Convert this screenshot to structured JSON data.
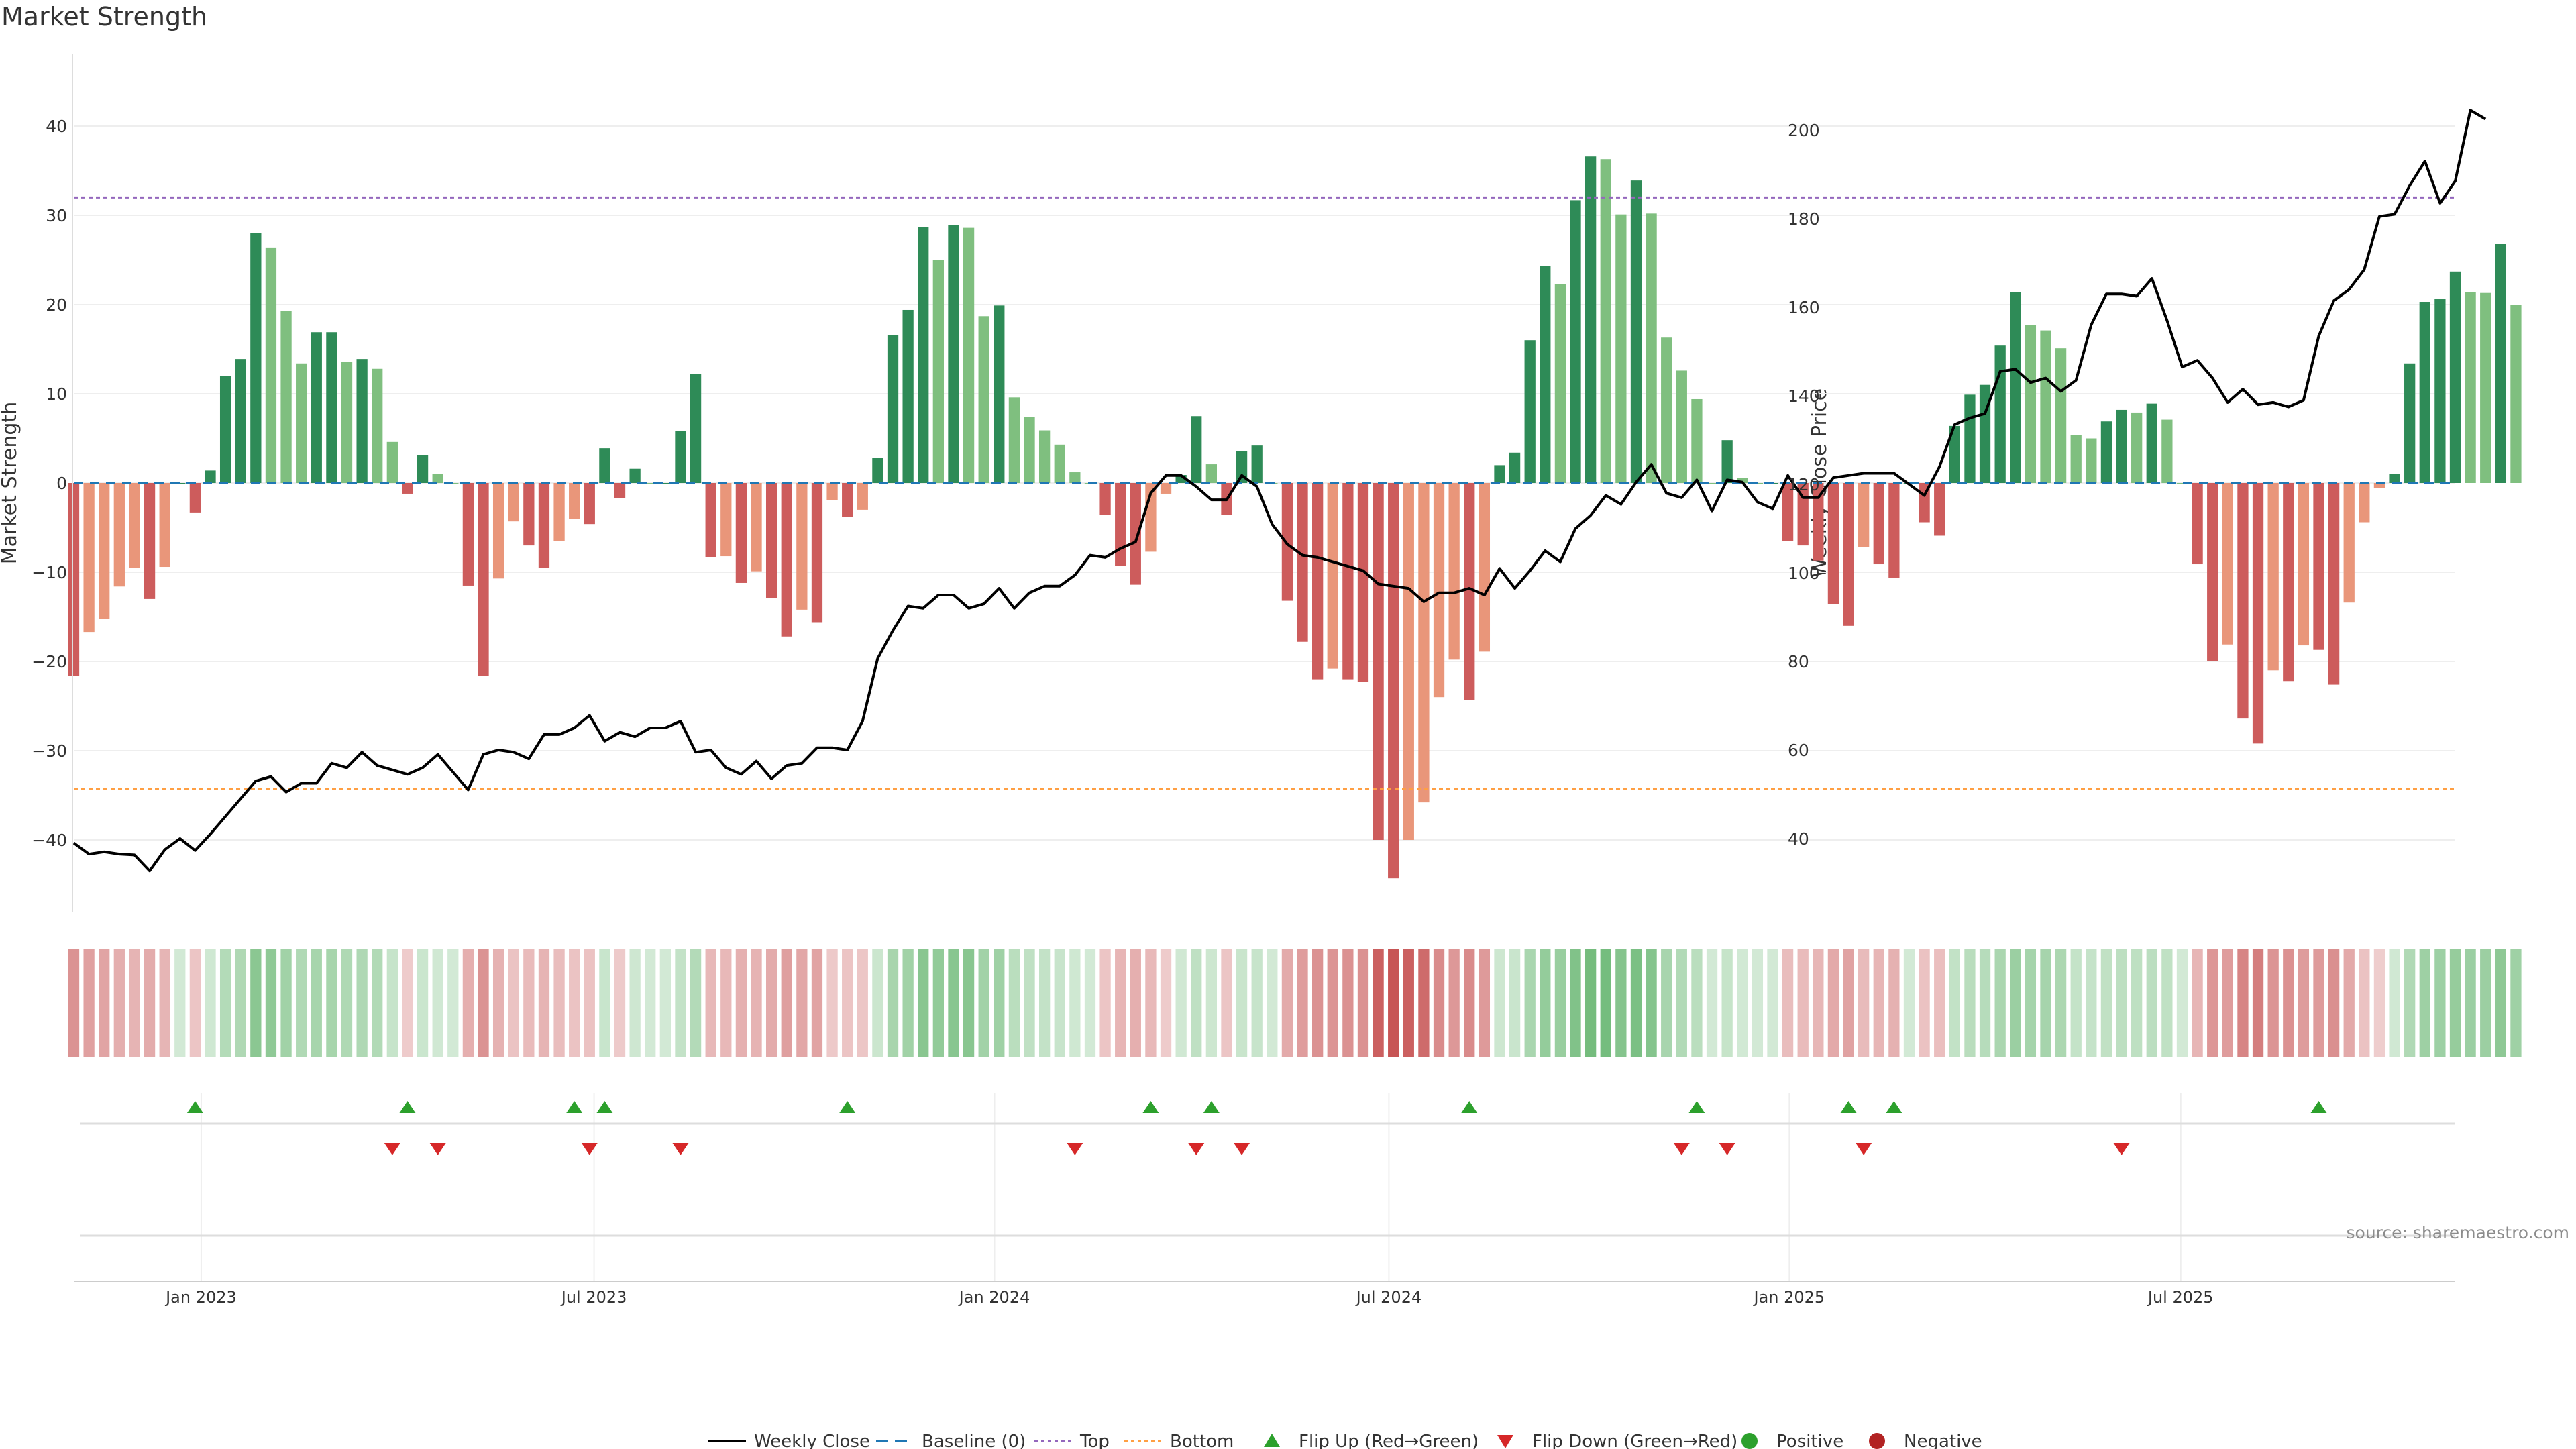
{
  "chart_data": {
    "type": "bar",
    "title": "Market Strength",
    "ylabel": "Market Strength",
    "y2label": "Weekly Close Price",
    "ylim": [
      -48,
      48
    ],
    "y2lim": [
      24,
      208
    ],
    "yticks": [
      40,
      30,
      20,
      10,
      0,
      -10,
      -20,
      -30,
      -40
    ],
    "ytick_labels": [
      "40",
      "30",
      "20",
      "10",
      "0",
      "−10",
      "−20",
      "−30",
      "−40"
    ],
    "y2ticks": [
      200,
      180,
      160,
      140,
      120,
      100,
      80,
      60,
      40
    ],
    "x_range_weeks": [
      0,
      157
    ],
    "xticks": [
      {
        "week": 8.4,
        "label": "Jan 2023"
      },
      {
        "week": 34.3,
        "label": "Jul 2023"
      },
      {
        "week": 60.7,
        "label": "Jan 2024"
      },
      {
        "week": 86.7,
        "label": "Jul 2024"
      },
      {
        "week": 113.1,
        "label": "Jan 2025"
      },
      {
        "week": 138.9,
        "label": "Jul 2025"
      }
    ],
    "top_level": 32,
    "bottom_level": -34.3,
    "series": [
      {
        "name": "Market Strength",
        "values": [
          -21.6,
          -16.7,
          -15.2,
          -11.6,
          -9.5,
          -13.0,
          -9.4,
          0,
          -3.3,
          1.4,
          12.0,
          13.9,
          28.0,
          26.4,
          19.3,
          13.4,
          16.9,
          16.9,
          13.6,
          13.9,
          12.8,
          4.6,
          -1.2,
          3.1,
          1.0,
          0,
          -11.5,
          -21.6,
          -10.7,
          -4.3,
          -7.0,
          -9.5,
          -6.5,
          -4.0,
          -4.6,
          3.9,
          -1.7,
          1.6,
          0,
          0,
          5.8,
          12.2,
          -8.3,
          -8.2,
          -11.2,
          -9.9,
          -12.9,
          -17.2,
          -14.2,
          -15.6,
          -1.9,
          -3.8,
          -3.0,
          2.8,
          16.6,
          19.4,
          28.7,
          25.0,
          28.9,
          28.6,
          18.7,
          19.9,
          9.6,
          7.4,
          5.9,
          4.3,
          1.2,
          0,
          -3.6,
          -9.3,
          -11.4,
          -7.7,
          -1.2,
          0.9,
          7.5,
          2.1,
          -3.6,
          3.6,
          4.2,
          0,
          -13.2,
          -17.8,
          -22.0,
          -20.8,
          -22.0,
          -22.3,
          -40.0,
          -44.3,
          -40.0,
          -35.8,
          -24.0,
          -19.8,
          -24.3,
          -18.9,
          2.0,
          3.4,
          16.0,
          24.3,
          22.3,
          31.7,
          36.6,
          36.3,
          30.1,
          33.9,
          30.2,
          16.3,
          12.6,
          9.4,
          0,
          4.8,
          0.6,
          0,
          0,
          -6.5,
          -7.0,
          -8.7,
          -13.6,
          -16.0,
          -7.2,
          -9.1,
          -10.6,
          0,
          -4.4,
          -5.9,
          6.4,
          9.9,
          11.0,
          15.4,
          21.4,
          17.7,
          17.1,
          15.1,
          5.4,
          5.0,
          6.9,
          8.2,
          7.9,
          8.9,
          7.1,
          0,
          -9.1,
          -20.0,
          -18.1,
          -26.4,
          -29.2,
          -21.0,
          -22.2,
          -18.2,
          -18.7,
          -22.6,
          -13.4,
          -4.4,
          -0.6,
          1.0,
          13.4,
          20.3,
          20.6,
          23.7,
          21.4,
          21.3,
          26.8,
          20.0
        ]
      },
      {
        "name": "Weekly Close",
        "values": [
          39,
          36.5,
          37,
          36.5,
          36.3,
          32.7,
          37.5,
          40,
          37.3,
          41,
          45,
          49,
          53,
          54,
          50.5,
          52.5,
          52.5,
          57,
          56,
          59.5,
          56.5,
          55.5,
          54.5,
          56,
          59,
          55,
          51,
          59,
          60,
          59.5,
          58,
          63.5,
          63.5,
          65,
          67.8,
          62,
          64,
          63,
          65,
          65,
          66.5,
          59.5,
          60,
          56,
          54.5,
          57.5,
          53.5,
          56.5,
          57,
          60.5,
          60.5,
          60,
          66.5,
          80.7,
          87,
          92.5,
          92,
          95,
          95,
          92,
          93,
          96.5,
          92,
          95.5,
          97,
          97,
          99.5,
          104,
          103.5,
          105.5,
          107,
          118,
          122,
          122,
          119.5,
          116.5,
          116.5,
          122,
          119.5,
          111,
          106.5,
          104,
          103.5,
          102.5,
          101.5,
          100.5,
          97.5,
          97,
          96.5,
          93.5,
          95.5,
          95.5,
          96.5,
          95,
          101,
          96.5,
          100.5,
          105,
          102.5,
          110,
          113,
          117.5,
          115.5,
          120.5,
          124.5,
          118,
          117,
          121,
          114,
          121,
          120.5,
          116,
          114.5,
          122,
          117,
          117,
          121.5,
          122,
          122.5,
          122.5,
          122.5,
          120,
          117.5,
          124,
          133.5,
          135,
          136,
          145.5,
          146,
          143,
          144,
          141,
          143.5,
          156,
          163,
          163,
          162.5,
          166.5,
          157,
          146.5,
          148,
          144,
          138.5,
          141.5,
          138,
          138.5,
          137.5,
          139,
          153.5,
          161.5,
          164,
          168.5,
          180.5,
          181,
          187.5,
          193,
          183.5,
          188.5,
          204.5,
          202.5
        ],
        "axis": "right",
        "color": "#000000"
      },
      {
        "name": "Baseline (0)",
        "value": 0
      }
    ],
    "flip_up_weeks": [
      8,
      22,
      33,
      35,
      51,
      71,
      75,
      92,
      107,
      117,
      120,
      148
    ],
    "flip_down_weeks": [
      21,
      24,
      34,
      40,
      66,
      74,
      77,
      106,
      109,
      118,
      135
    ],
    "legend": [
      "Weekly Close",
      "Baseline (0)",
      "Top",
      "Bottom",
      "Flip Up (Red→Green)",
      "Flip Down (Green→Red)",
      "Positive",
      "Negative"
    ],
    "legend_position": "bottom-center",
    "source": "source: sharemaestro.com",
    "colors": {
      "strong_pos": "#2e8b57",
      "weak_pos": "#7fbf7f",
      "strong_neg": "#cd5c5c",
      "weak_neg": "#e9967a",
      "top": "#9467bd",
      "bottom": "#ff9f43",
      "baseline": "#1f77b4",
      "flip_up": "#2ca02c",
      "flip_down": "#d62728",
      "positive_dot": "#2ca02c",
      "negative_dot": "#b22222"
    }
  }
}
